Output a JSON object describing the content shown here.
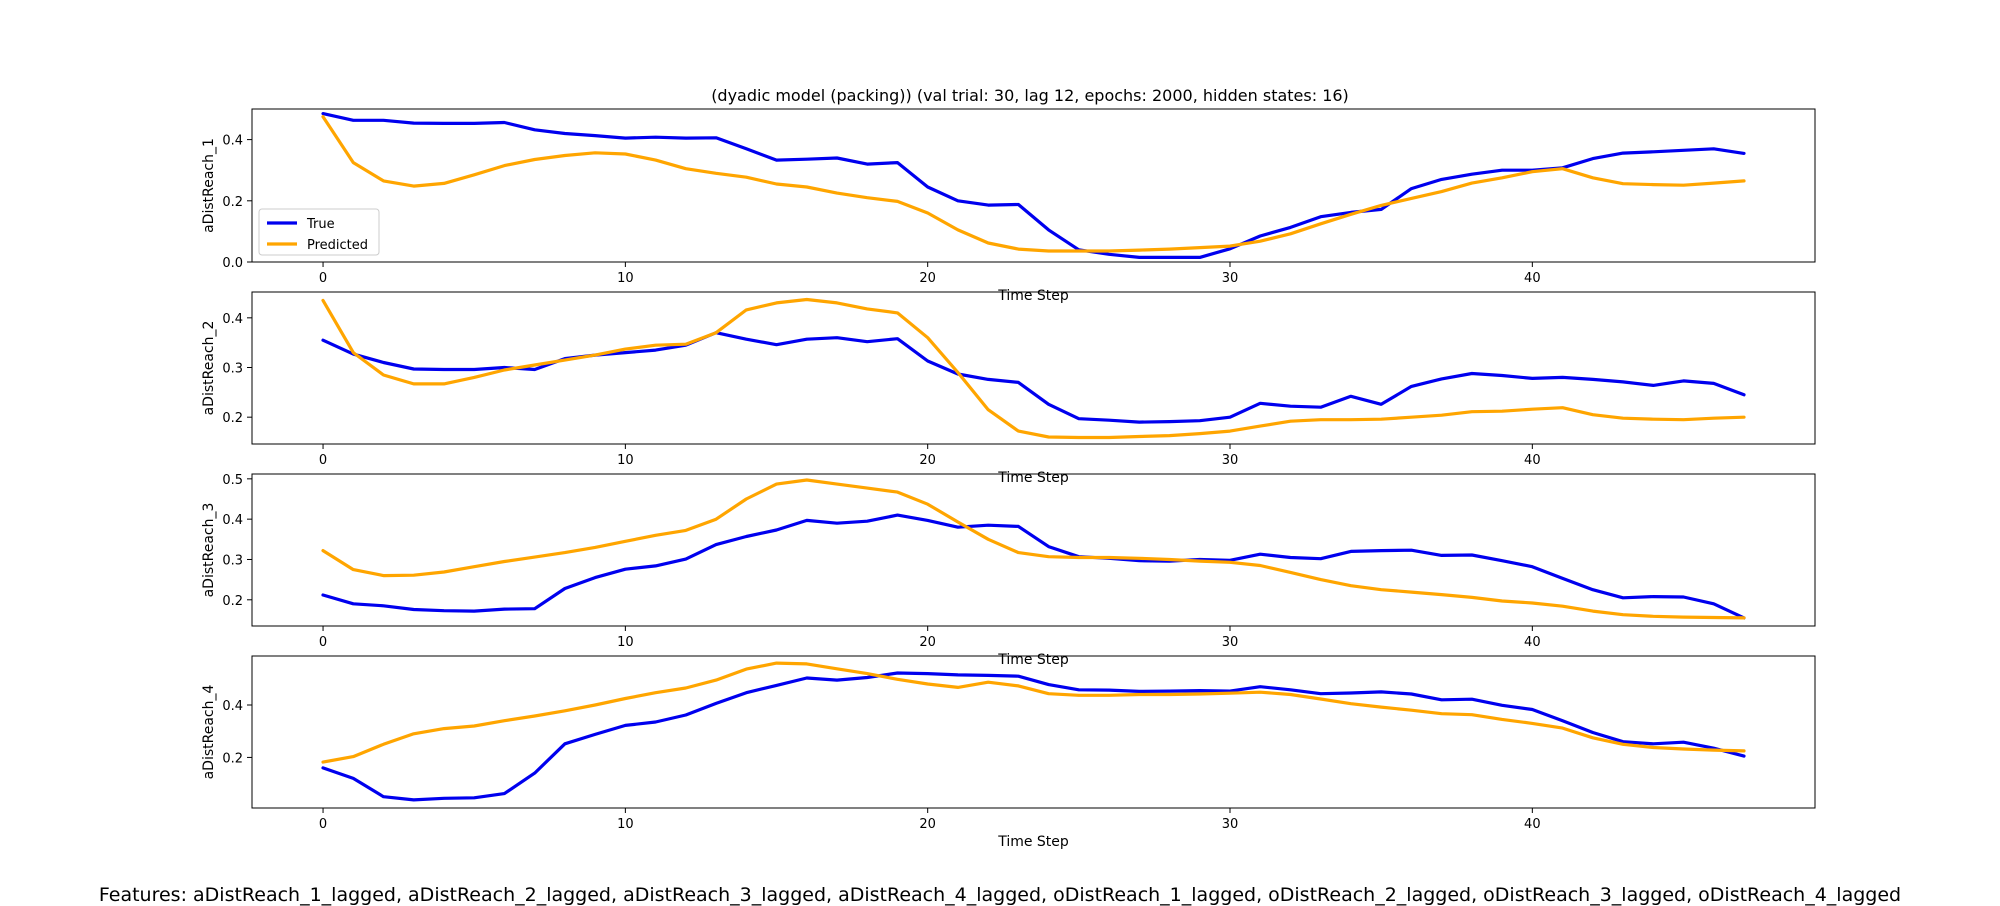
{
  "figure": {
    "title": "(dyadic model (packing)) (val trial: 30, lag 12, epochs: 2000, hidden states: 16)",
    "features_caption": "Features: aDistReach_1_lagged, aDistReach_2_lagged, aDistReach_3_lagged, aDistReach_4_lagged, oDistReach_1_lagged, oDistReach_2_lagged, oDistReach_3_lagged, oDistReach_4_lagged"
  },
  "colors": {
    "true": "#0000ee",
    "predicted": "#ffa500"
  },
  "chart_data": [
    {
      "type": "line",
      "xlabel": "Time Step",
      "ylabel": "aDistReach_1",
      "xlim": [
        -2.35,
        49.35
      ],
      "ylim": [
        0.0,
        0.5
      ],
      "xticks": [
        "0",
        "10",
        "20",
        "30",
        "40"
      ],
      "yticks": [
        "0.0",
        "0.2",
        "0.4"
      ],
      "legend": {
        "placement": "lower-left",
        "entries": [
          "True",
          "Predicted"
        ]
      },
      "series": [
        {
          "name": "True",
          "values": [
            0.485,
            0.463,
            0.463,
            0.454,
            0.453,
            0.453,
            0.456,
            0.432,
            0.42,
            0.413,
            0.405,
            0.408,
            0.405,
            0.406,
            0.37,
            0.333,
            0.336,
            0.34,
            0.32,
            0.325,
            0.245,
            0.2,
            0.186,
            0.188,
            0.105,
            0.04,
            0.025,
            0.015,
            0.015,
            0.015,
            0.043,
            0.085,
            0.113,
            0.148,
            0.162,
            0.172,
            0.24,
            0.27,
            0.287,
            0.3,
            0.3,
            0.308,
            0.338,
            0.356,
            0.36,
            0.365,
            0.37,
            0.355
          ]
        },
        {
          "name": "Predicted",
          "values": [
            0.475,
            0.325,
            0.265,
            0.248,
            0.257,
            0.285,
            0.315,
            0.335,
            0.348,
            0.357,
            0.353,
            0.333,
            0.305,
            0.29,
            0.277,
            0.255,
            0.245,
            0.225,
            0.21,
            0.198,
            0.16,
            0.105,
            0.062,
            0.042,
            0.036,
            0.036,
            0.036,
            0.039,
            0.042,
            0.047,
            0.052,
            0.068,
            0.092,
            0.125,
            0.156,
            0.185,
            0.208,
            0.23,
            0.258,
            0.275,
            0.295,
            0.305,
            0.275,
            0.256,
            0.253,
            0.251,
            0.258,
            0.265
          ]
        }
      ]
    },
    {
      "type": "line",
      "xlabel": "Time Step",
      "ylabel": "aDistReach_2",
      "xlim": [
        -2.35,
        49.35
      ],
      "ylim": [
        0.146,
        0.452
      ],
      "xticks": [
        "0",
        "10",
        "20",
        "30",
        "40"
      ],
      "yticks": [
        "0.2",
        "0.3",
        "0.4"
      ],
      "series": [
        {
          "name": "True",
          "values": [
            0.355,
            0.327,
            0.31,
            0.297,
            0.296,
            0.296,
            0.3,
            0.296,
            0.318,
            0.325,
            0.33,
            0.335,
            0.345,
            0.37,
            0.357,
            0.346,
            0.357,
            0.36,
            0.352,
            0.358,
            0.313,
            0.287,
            0.276,
            0.27,
            0.226,
            0.197,
            0.194,
            0.19,
            0.191,
            0.193,
            0.2,
            0.228,
            0.222,
            0.22,
            0.242,
            0.226,
            0.262,
            0.277,
            0.288,
            0.284,
            0.278,
            0.28,
            0.276,
            0.271,
            0.264,
            0.273,
            0.268,
            0.245
          ]
        },
        {
          "name": "Predicted",
          "values": [
            0.435,
            0.33,
            0.285,
            0.267,
            0.267,
            0.28,
            0.295,
            0.305,
            0.315,
            0.325,
            0.337,
            0.345,
            0.347,
            0.37,
            0.416,
            0.43,
            0.437,
            0.43,
            0.418,
            0.41,
            0.36,
            0.29,
            0.215,
            0.172,
            0.16,
            0.159,
            0.159,
            0.161,
            0.163,
            0.167,
            0.172,
            0.182,
            0.192,
            0.195,
            0.195,
            0.196,
            0.2,
            0.204,
            0.211,
            0.212,
            0.216,
            0.219,
            0.205,
            0.198,
            0.196,
            0.195,
            0.198,
            0.2
          ]
        }
      ]
    },
    {
      "type": "line",
      "xlabel": "Time Step",
      "ylabel": "aDistReach_3",
      "xlim": [
        -2.35,
        49.35
      ],
      "ylim": [
        0.135,
        0.512
      ],
      "xticks": [
        "0",
        "10",
        "20",
        "30",
        "40"
      ],
      "yticks": [
        "0.2",
        "0.3",
        "0.4",
        "0.5"
      ],
      "series": [
        {
          "name": "True",
          "values": [
            0.212,
            0.19,
            0.185,
            0.176,
            0.173,
            0.172,
            0.177,
            0.178,
            0.228,
            0.255,
            0.276,
            0.284,
            0.301,
            0.337,
            0.357,
            0.373,
            0.397,
            0.39,
            0.395,
            0.41,
            0.397,
            0.38,
            0.385,
            0.382,
            0.332,
            0.307,
            0.303,
            0.297,
            0.296,
            0.3,
            0.298,
            0.313,
            0.305,
            0.302,
            0.32,
            0.322,
            0.323,
            0.31,
            0.311,
            0.297,
            0.282,
            0.253,
            0.225,
            0.205,
            0.208,
            0.207,
            0.19,
            0.155
          ]
        },
        {
          "name": "Predicted",
          "values": [
            0.322,
            0.275,
            0.26,
            0.261,
            0.269,
            0.282,
            0.295,
            0.306,
            0.317,
            0.33,
            0.345,
            0.36,
            0.372,
            0.4,
            0.45,
            0.487,
            0.497,
            0.487,
            0.477,
            0.467,
            0.437,
            0.393,
            0.35,
            0.317,
            0.307,
            0.305,
            0.305,
            0.303,
            0.3,
            0.296,
            0.293,
            0.285,
            0.268,
            0.25,
            0.235,
            0.225,
            0.219,
            0.213,
            0.206,
            0.197,
            0.192,
            0.184,
            0.172,
            0.163,
            0.159,
            0.157,
            0.156,
            0.155
          ]
        }
      ]
    },
    {
      "type": "line",
      "xlabel": "Time Step",
      "ylabel": "aDistReach_4",
      "xlim": [
        -2.35,
        49.35
      ],
      "ylim": [
        0.007,
        0.587
      ],
      "xticks": [
        "0",
        "10",
        "20",
        "30",
        "40"
      ],
      "yticks": [
        "0.2",
        "0.4"
      ],
      "series": [
        {
          "name": "True",
          "values": [
            0.16,
            0.12,
            0.05,
            0.038,
            0.044,
            0.046,
            0.062,
            0.14,
            0.252,
            0.288,
            0.322,
            0.335,
            0.362,
            0.406,
            0.447,
            0.475,
            0.503,
            0.495,
            0.505,
            0.522,
            0.52,
            0.515,
            0.513,
            0.51,
            0.478,
            0.458,
            0.457,
            0.452,
            0.453,
            0.455,
            0.453,
            0.47,
            0.458,
            0.443,
            0.446,
            0.45,
            0.442,
            0.42,
            0.422,
            0.399,
            0.383,
            0.34,
            0.295,
            0.26,
            0.252,
            0.258,
            0.235,
            0.205
          ]
        },
        {
          "name": "Predicted",
          "values": [
            0.182,
            0.203,
            0.25,
            0.29,
            0.31,
            0.32,
            0.34,
            0.358,
            0.378,
            0.4,
            0.425,
            0.447,
            0.465,
            0.495,
            0.537,
            0.56,
            0.557,
            0.538,
            0.52,
            0.498,
            0.48,
            0.467,
            0.487,
            0.473,
            0.443,
            0.437,
            0.437,
            0.44,
            0.44,
            0.442,
            0.445,
            0.449,
            0.44,
            0.423,
            0.405,
            0.392,
            0.38,
            0.367,
            0.363,
            0.345,
            0.33,
            0.312,
            0.275,
            0.25,
            0.238,
            0.232,
            0.228,
            0.225
          ]
        }
      ]
    }
  ]
}
